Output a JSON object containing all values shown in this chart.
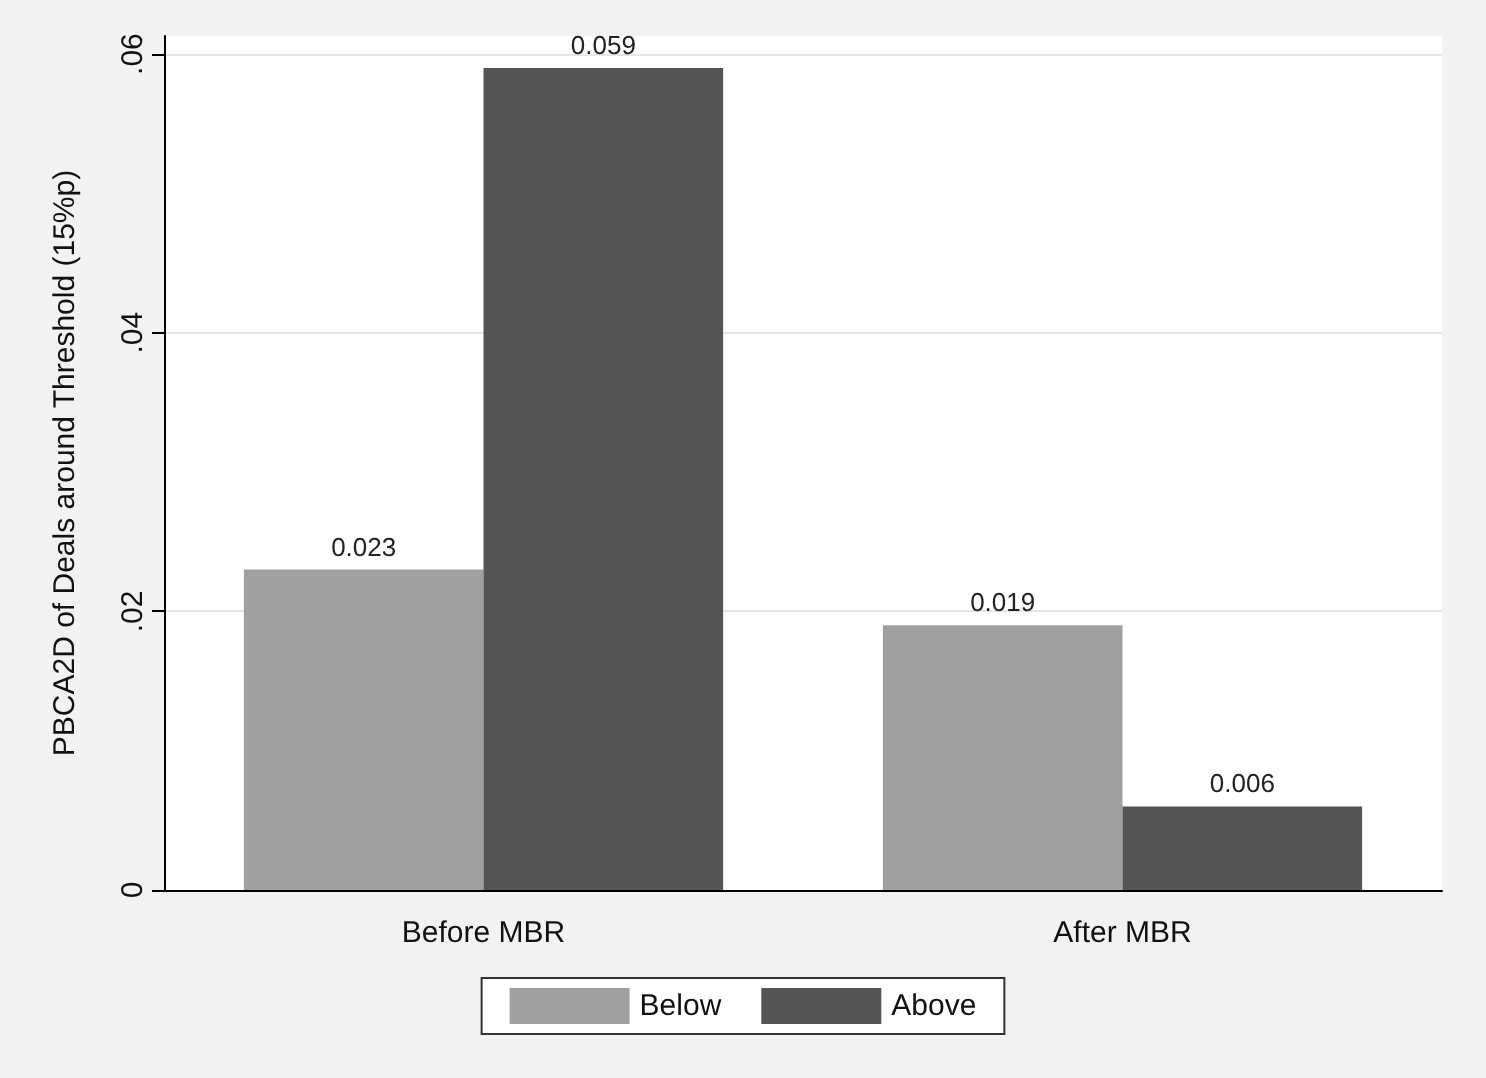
{
  "chart_data": {
    "type": "bar",
    "ylabel": "PBCA2D of Deals around Threshold (15%p)",
    "categories": [
      "Before MBR",
      "After MBR"
    ],
    "series": [
      {
        "name": "Below",
        "color": "#a0a0a0",
        "values": [
          0.023,
          0.019
        ]
      },
      {
        "name": "Above",
        "color": "#555555",
        "values": [
          0.059,
          0.006
        ]
      }
    ],
    "ylim": [
      0,
      0.0613
    ],
    "yticks": [
      {
        "value": 0,
        "label": "0"
      },
      {
        "value": 0.02,
        "label": ".02"
      },
      {
        "value": 0.04,
        "label": ".04"
      },
      {
        "value": 0.06,
        "label": ".06"
      }
    ],
    "grid": "y",
    "legend": "bottom",
    "data_labels": true
  }
}
